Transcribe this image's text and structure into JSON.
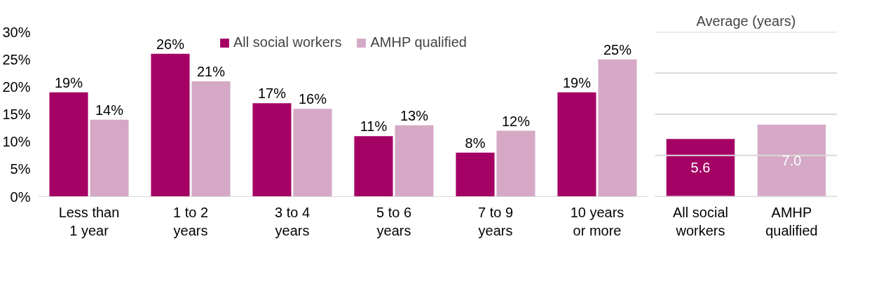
{
  "chart_data": [
    {
      "type": "bar",
      "categories": [
        "Less than 1 year",
        "1 to 2 years",
        "3 to 4 years",
        "5 to 6 years",
        "7 to 9 years",
        "10 years or more"
      ],
      "series": [
        {
          "name": "All social workers",
          "color": "#a50064",
          "values": [
            19,
            26,
            17,
            11,
            8,
            19
          ],
          "value_labels": [
            "19%",
            "26%",
            "17%",
            "11%",
            "8%",
            "19%"
          ]
        },
        {
          "name": "AMHP qualified",
          "color": "#d5a9c6",
          "values": [
            14,
            21,
            16,
            13,
            12,
            25
          ],
          "value_labels": [
            "14%",
            "21%",
            "16%",
            "13%",
            "12%",
            "25%"
          ]
        }
      ],
      "ylim": [
        0,
        30
      ],
      "yticks": [
        {
          "value": 0,
          "label": "0%"
        },
        {
          "value": 5,
          "label": "5%"
        },
        {
          "value": 10,
          "label": "10%"
        },
        {
          "value": 15,
          "label": "15%"
        },
        {
          "value": 20,
          "label": "20%"
        },
        {
          "value": 25,
          "label": "25%"
        },
        {
          "value": 30,
          "label": "30%"
        }
      ],
      "legend": "top",
      "grid": false
    },
    {
      "type": "bar",
      "title": "Average (years)",
      "categories": [
        "All social workers",
        "AMHP qualified"
      ],
      "values": [
        5.6,
        7.0
      ],
      "value_labels": [
        "5.6",
        "7.0"
      ],
      "colors": [
        "#a50064",
        "#d5a9c6"
      ],
      "ylim": [
        0,
        16
      ],
      "yticks": [
        {
          "value": 0,
          "label": null
        },
        {
          "value": 4,
          "label": null
        },
        {
          "value": 8,
          "label": null
        },
        {
          "value": 12,
          "label": null
        },
        {
          "value": 16,
          "label": null
        }
      ],
      "tick_labels": "x",
      "grid": "y"
    }
  ]
}
